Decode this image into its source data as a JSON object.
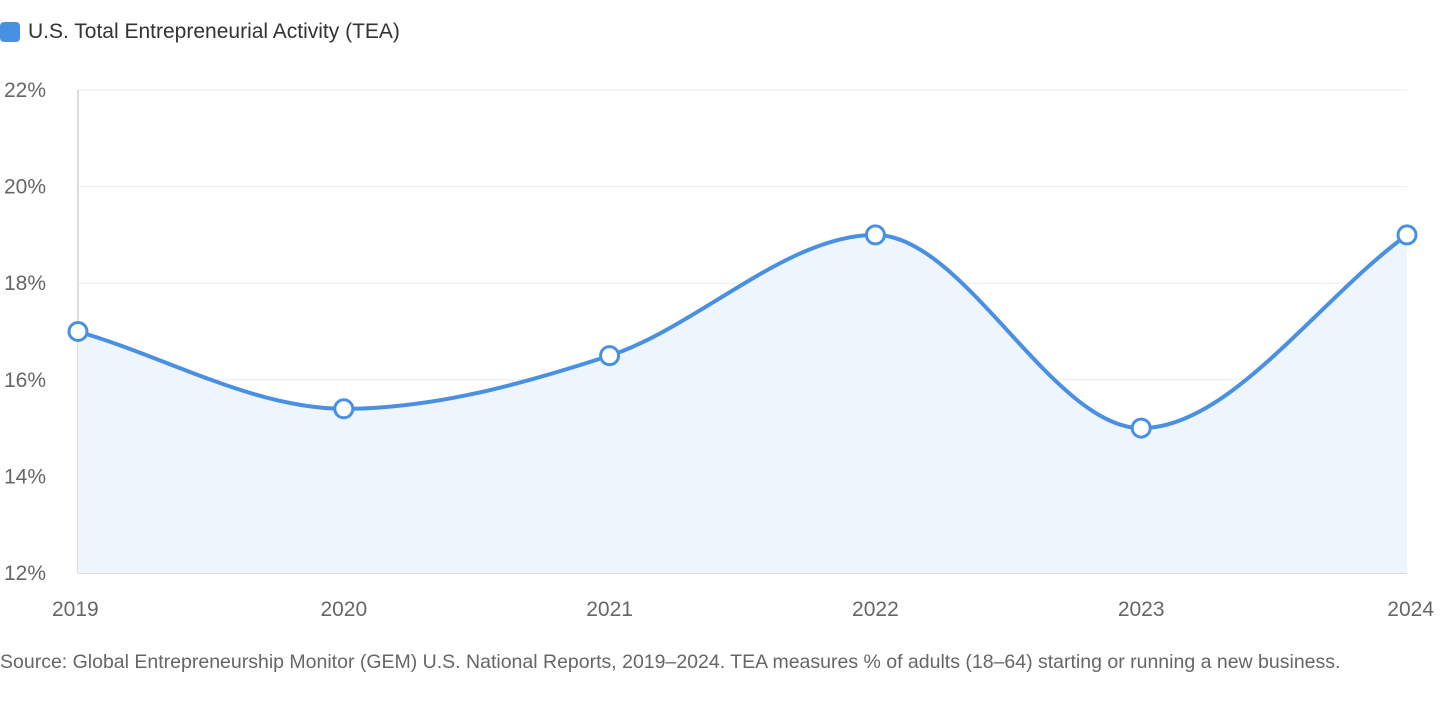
{
  "colors": {
    "series_line": "#4a90e2",
    "series_fill": "#eef5fd",
    "grid": "#ebebeb",
    "axis": "#d4d4d4",
    "tick_text": "#666666",
    "point_fill": "#ffffff"
  },
  "chart_data": {
    "type": "line",
    "title": "",
    "xlabel": "",
    "ylabel": "",
    "legend_position": "top-left",
    "grid": true,
    "x": [
      "2019",
      "2020",
      "2021",
      "2022",
      "2023",
      "2024"
    ],
    "series": [
      {
        "name": "U.S. Total Entrepreneurial Activity (TEA)",
        "values": [
          17.0,
          15.4,
          16.5,
          19.0,
          15.0,
          19.0
        ],
        "area": true,
        "smooth": true
      }
    ],
    "ylim": [
      12,
      22
    ],
    "y_ticks": [
      12,
      14,
      16,
      18,
      20,
      22
    ],
    "y_tick_labels": [
      "12%",
      "14%",
      "16%",
      "18%",
      "20%",
      "22%"
    ]
  },
  "source_note": "Source: Global Entrepreneurship Monitor (GEM) U.S. National Reports, 2019–2024. TEA measures % of adults (18–64) starting or running a new business."
}
